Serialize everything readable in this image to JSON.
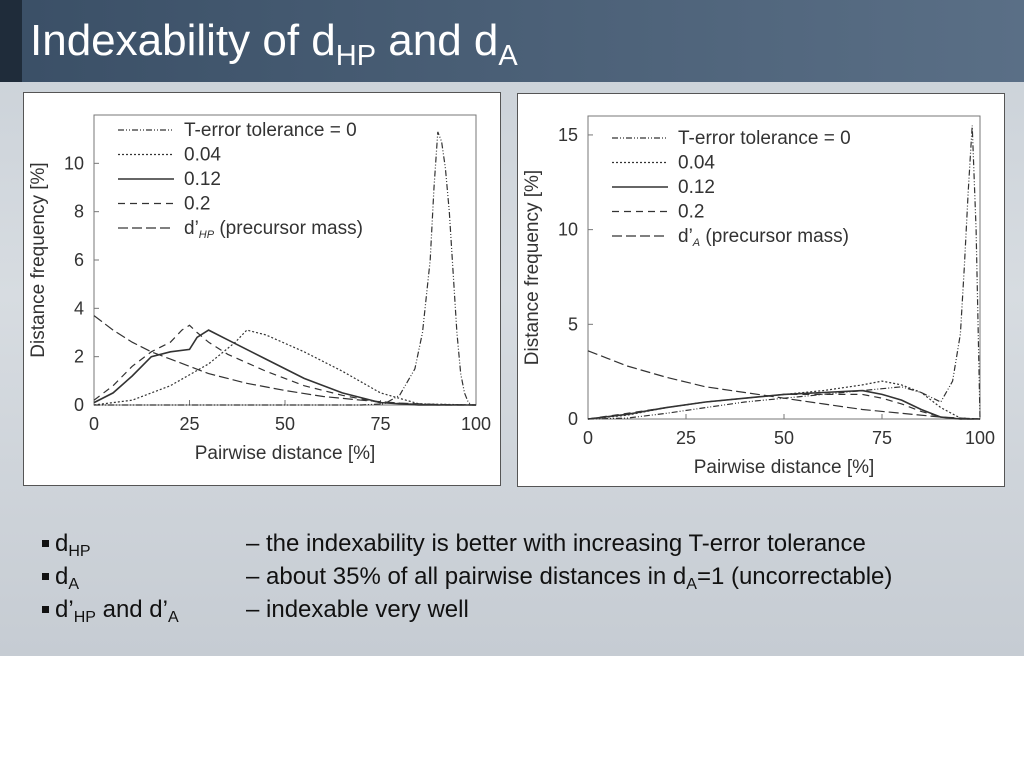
{
  "slide": {
    "title_main": "Indexability of d",
    "title_sub1": "HP",
    "title_mid": " and d",
    "title_sub2": "A"
  },
  "colors": {
    "banner": "#4c6178",
    "background": "#d0d6dc",
    "line": "#333333"
  },
  "chart_data": [
    {
      "type": "line",
      "xlabel": "Pairwise distance [%]",
      "ylabel": "Distance frequency [%]",
      "xlim": [
        0,
        100
      ],
      "ylim": [
        0,
        12
      ],
      "xticks": [
        "0",
        "25",
        "50",
        "75",
        "100"
      ],
      "yticks": [
        "0",
        "2",
        "4",
        "6",
        "8",
        "10"
      ],
      "legend_position": "top-left",
      "grid": false,
      "series": [
        {
          "name": "T-error tolerance = 0",
          "dash": "dashdot",
          "x": [
            0,
            70,
            76,
            80,
            84,
            86,
            88,
            89,
            90,
            91,
            92,
            93,
            94,
            95,
            96,
            97,
            98,
            99,
            100
          ],
          "y": [
            0,
            0,
            0.05,
            0.4,
            1.5,
            3,
            6,
            9,
            11.3,
            10.9,
            9.8,
            8,
            5.5,
            3,
            1.3,
            0.5,
            0.1,
            0,
            0
          ]
        },
        {
          "name": "0.04",
          "dash": "dotted",
          "x": [
            0,
            10,
            20,
            30,
            37,
            40,
            45,
            55,
            65,
            75,
            85,
            100
          ],
          "y": [
            0,
            0.2,
            0.8,
            1.7,
            2.6,
            3.1,
            2.9,
            2.2,
            1.4,
            0.5,
            0.05,
            0
          ]
        },
        {
          "name": "0.12",
          "dash": "solid",
          "x": [
            0,
            5,
            10,
            15,
            20,
            25,
            27,
            30,
            35,
            45,
            55,
            65,
            75,
            85,
            100
          ],
          "y": [
            0.1,
            0.5,
            1.2,
            2.0,
            2.2,
            2.3,
            2.8,
            3.1,
            2.7,
            1.9,
            1.1,
            0.5,
            0.1,
            0,
            0
          ]
        },
        {
          "name": "0.2",
          "dash": "dashed",
          "x": [
            0,
            5,
            10,
            15,
            20,
            23,
            25,
            27,
            30,
            35,
            45,
            55,
            65,
            75,
            90,
            100
          ],
          "y": [
            0.2,
            0.8,
            1.6,
            2.2,
            2.6,
            3.1,
            3.3,
            3.0,
            2.6,
            2.1,
            1.4,
            0.8,
            0.4,
            0.1,
            0,
            0
          ]
        },
        {
          "name": "d’HP (precursor mass)",
          "name_base": "d’",
          "name_sub": "HP",
          "name_rest": " (precursor mass)",
          "dash": "longdash",
          "x": [
            0,
            5,
            10,
            15,
            20,
            25,
            30,
            40,
            50,
            60,
            70,
            80,
            90,
            100
          ],
          "y": [
            3.7,
            3.1,
            2.6,
            2.2,
            1.9,
            1.6,
            1.3,
            0.9,
            0.6,
            0.35,
            0.2,
            0.08,
            0.02,
            0
          ]
        }
      ]
    },
    {
      "type": "line",
      "xlabel": "Pairwise distance [%]",
      "ylabel": "Distance frequency [%]",
      "xlim": [
        0,
        100
      ],
      "ylim": [
        0,
        16
      ],
      "xticks": [
        "0",
        "25",
        "50",
        "75",
        "100"
      ],
      "yticks": [
        "0",
        "5",
        "10",
        "15"
      ],
      "legend_position": "top-left",
      "grid": false,
      "series": [
        {
          "name": "T-error tolerance = 0",
          "dash": "dashdot",
          "x": [
            0,
            10,
            20,
            30,
            40,
            50,
            60,
            70,
            75,
            80,
            85,
            90,
            93,
            95,
            96,
            97,
            98,
            99,
            100
          ],
          "y": [
            0,
            0.05,
            0.3,
            0.6,
            0.9,
            1.1,
            1.3,
            1.5,
            1.6,
            1.7,
            1.4,
            0.9,
            2.0,
            4.5,
            8,
            12,
            15.5,
            10,
            0
          ]
        },
        {
          "name": "0.04",
          "dash": "dotted",
          "x": [
            0,
            10,
            20,
            30,
            40,
            50,
            60,
            70,
            75,
            80,
            85,
            90,
            95,
            100
          ],
          "y": [
            0,
            0.2,
            0.6,
            0.9,
            1.1,
            1.3,
            1.5,
            1.8,
            2.0,
            1.8,
            1.4,
            0.6,
            0.05,
            0
          ]
        },
        {
          "name": "0.12",
          "dash": "solid",
          "x": [
            0,
            10,
            20,
            30,
            40,
            50,
            60,
            70,
            75,
            80,
            85,
            90,
            95,
            100
          ],
          "y": [
            0,
            0.25,
            0.6,
            0.9,
            1.1,
            1.3,
            1.4,
            1.5,
            1.3,
            1.0,
            0.5,
            0.1,
            0,
            0
          ]
        },
        {
          "name": "0.2",
          "dash": "dashed",
          "x": [
            0,
            10,
            20,
            30,
            40,
            50,
            60,
            70,
            75,
            80,
            85,
            90,
            95,
            100
          ],
          "y": [
            0,
            0.3,
            0.6,
            0.9,
            1.1,
            1.3,
            1.3,
            1.3,
            1.1,
            0.8,
            0.4,
            0.1,
            0,
            0
          ]
        },
        {
          "name": "d’A (precursor mass)",
          "name_base": "d’",
          "name_sub": "A",
          "name_rest": " (precursor mass)",
          "dash": "longdash",
          "x": [
            0,
            5,
            10,
            20,
            30,
            40,
            50,
            60,
            70,
            80,
            90,
            100
          ],
          "y": [
            3.6,
            3.2,
            2.8,
            2.2,
            1.7,
            1.4,
            1.1,
            0.8,
            0.5,
            0.3,
            0.1,
            0
          ]
        }
      ]
    }
  ],
  "bullets": [
    {
      "label": "d",
      "label_sub": "HP",
      "label_rest": "",
      "label_sub2": "",
      "desc": "– the indexability is better with increasing T-error tolerance",
      "desc_sub": "",
      "desc_rest": ""
    },
    {
      "label": "d",
      "label_sub": "A",
      "label_rest": "",
      "label_sub2": "",
      "desc": "– about 35% of all pairwise distances in d",
      "desc_sub": "A",
      "desc_rest": "=1 (uncorrectable)"
    },
    {
      "label": "d’",
      "label_sub": "HP",
      "label_rest": " and d’",
      "label_sub2": "A",
      "desc": "– indexable very well",
      "desc_sub": "",
      "desc_rest": ""
    }
  ]
}
